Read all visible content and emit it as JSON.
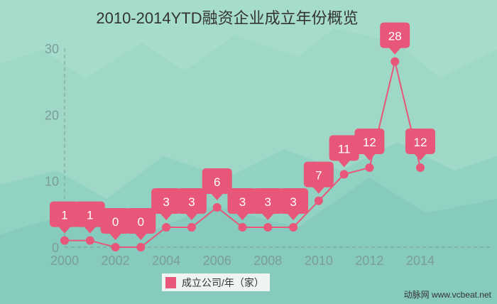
{
  "chart_data": {
    "type": "line",
    "title": "2010-2014YTD融资企业成立年份概览",
    "x": [
      2000,
      2001,
      2002,
      2003,
      2004,
      2005,
      2006,
      2007,
      2008,
      2009,
      2010,
      2011,
      2012,
      2013,
      2014
    ],
    "series": [
      {
        "name": "成立公司/年（家）",
        "values": [
          1,
          1,
          0,
          0,
          3,
          3,
          6,
          3,
          3,
          3,
          7,
          11,
          12,
          28,
          12
        ]
      }
    ],
    "x_ticks": [
      "2000",
      "2002",
      "2004",
      "2006",
      "2008",
      "2010",
      "2012",
      "2014"
    ],
    "y_ticks": [
      "0",
      "10",
      "20",
      "30"
    ],
    "ylim": [
      0,
      30
    ],
    "xlim": [
      2000,
      2014
    ],
    "legend_placement": "bottom",
    "colors": {
      "series": "#e8577a",
      "background": "#a6dccb",
      "axis_text": "#7a9e96"
    }
  },
  "credit": "动脉网 www.vcbeat.net"
}
